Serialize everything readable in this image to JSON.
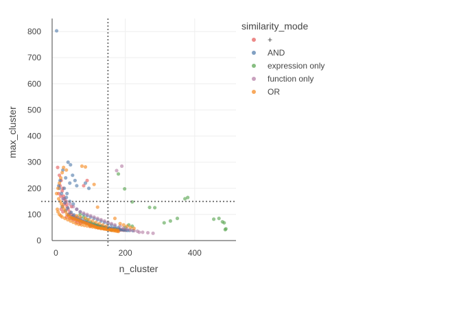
{
  "chart_data": {
    "type": "scatter",
    "xlabel": "n_cluster",
    "ylabel": "max_cluster",
    "xlim": [
      -5,
      525
    ],
    "ylim": [
      0,
      850
    ],
    "x_ticks": [
      0,
      200,
      400
    ],
    "y_ticks": [
      0,
      100,
      200,
      300,
      400,
      500,
      600,
      700,
      800
    ],
    "reference_lines": {
      "x": 150,
      "y": 150,
      "style": "dotted"
    },
    "grid": true,
    "legend": {
      "title": "similarity_mode",
      "placement": "right"
    },
    "series": [
      {
        "name": "+",
        "color": "#e45756",
        "points": [
          [
            5,
            280
          ],
          [
            10,
            250
          ],
          [
            12,
            210
          ],
          [
            15,
            230
          ],
          [
            18,
            190
          ],
          [
            20,
            200
          ],
          [
            22,
            170
          ],
          [
            25,
            160
          ],
          [
            28,
            150
          ],
          [
            30,
            140
          ],
          [
            32,
            130
          ],
          [
            35,
            120
          ],
          [
            40,
            110
          ],
          [
            45,
            100
          ],
          [
            50,
            95
          ],
          [
            55,
            90
          ],
          [
            60,
            85
          ],
          [
            65,
            80
          ],
          [
            70,
            78
          ],
          [
            75,
            75
          ],
          [
            80,
            72
          ],
          [
            85,
            70
          ],
          [
            90,
            68
          ],
          [
            95,
            65
          ],
          [
            100,
            62
          ],
          [
            105,
            60
          ],
          [
            110,
            58
          ],
          [
            115,
            56
          ],
          [
            120,
            55
          ],
          [
            125,
            53
          ],
          [
            130,
            52
          ],
          [
            135,
            50
          ],
          [
            140,
            50
          ],
          [
            145,
            48
          ],
          [
            150,
            47
          ],
          [
            155,
            46
          ],
          [
            160,
            45
          ],
          [
            165,
            44
          ],
          [
            170,
            43
          ],
          [
            175,
            42
          ],
          [
            180,
            42
          ],
          [
            185,
            41
          ],
          [
            190,
            41
          ],
          [
            195,
            40
          ],
          [
            200,
            40
          ],
          [
            8,
            180
          ],
          [
            14,
            170
          ],
          [
            24,
            140
          ],
          [
            38,
            100
          ],
          [
            48,
            85
          ],
          [
            58,
            78
          ],
          [
            68,
            73
          ],
          [
            78,
            70
          ],
          [
            88,
            66
          ],
          [
            98,
            60
          ],
          [
            108,
            57
          ],
          [
            118,
            54
          ],
          [
            128,
            51
          ],
          [
            138,
            49
          ],
          [
            90,
            230
          ],
          [
            80,
            210
          ],
          [
            45,
            130
          ],
          [
            15,
            120
          ],
          [
            20,
            110
          ],
          [
            30,
            90
          ],
          [
            40,
            85
          ],
          [
            50,
            80
          ],
          [
            60,
            70
          ],
          [
            70,
            65
          ],
          [
            100,
            55
          ],
          [
            120,
            50
          ],
          [
            140,
            45
          ],
          [
            160,
            40
          ],
          [
            180,
            38
          ]
        ]
      },
      {
        "name": "AND",
        "color": "#4c78a8",
        "points": [
          [
            2,
            803
          ],
          [
            35,
            300
          ],
          [
            42,
            290
          ],
          [
            48,
            250
          ],
          [
            55,
            230
          ],
          [
            85,
            220
          ],
          [
            10,
            200
          ],
          [
            16,
            180
          ],
          [
            22,
            160
          ],
          [
            26,
            145
          ],
          [
            34,
            125
          ],
          [
            44,
            108
          ],
          [
            52,
            98
          ],
          [
            62,
            90
          ],
          [
            72,
            85
          ],
          [
            82,
            78
          ],
          [
            92,
            72
          ],
          [
            102,
            66
          ],
          [
            112,
            62
          ],
          [
            122,
            58
          ],
          [
            132,
            55
          ],
          [
            142,
            52
          ],
          [
            152,
            50
          ],
          [
            162,
            48
          ],
          [
            172,
            46
          ],
          [
            182,
            44
          ],
          [
            192,
            42
          ],
          [
            202,
            40
          ],
          [
            212,
            39
          ],
          [
            222,
            38
          ],
          [
            18,
            130
          ],
          [
            28,
            115
          ],
          [
            36,
            100
          ],
          [
            46,
            92
          ],
          [
            56,
            86
          ],
          [
            66,
            80
          ],
          [
            76,
            74
          ],
          [
            86,
            70
          ],
          [
            96,
            64
          ],
          [
            106,
            60
          ],
          [
            116,
            57
          ],
          [
            126,
            54
          ],
          [
            136,
            52
          ],
          [
            146,
            49
          ],
          [
            156,
            47
          ],
          [
            166,
            45
          ],
          [
            176,
            43
          ],
          [
            186,
            41
          ],
          [
            196,
            40
          ],
          [
            206,
            39
          ],
          [
            20,
            270
          ],
          [
            28,
            240
          ],
          [
            40,
            220
          ],
          [
            60,
            210
          ],
          [
            95,
            200
          ],
          [
            12,
            230
          ],
          [
            8,
            210
          ],
          [
            24,
            200
          ],
          [
            32,
            180
          ],
          [
            30,
            165
          ],
          [
            40,
            150
          ],
          [
            50,
            140
          ],
          [
            60,
            120
          ],
          [
            70,
            110
          ],
          [
            80,
            100
          ],
          [
            90,
            95
          ],
          [
            100,
            90
          ],
          [
            110,
            85
          ],
          [
            120,
            80
          ],
          [
            130,
            75
          ],
          [
            140,
            70
          ],
          [
            150,
            65
          ],
          [
            160,
            60
          ],
          [
            170,
            55
          ],
          [
            180,
            50
          ]
        ]
      },
      {
        "name": "expression only",
        "color": "#54a24b",
        "points": [
          [
            180,
            255
          ],
          [
            198,
            198
          ],
          [
            220,
            148
          ],
          [
            270,
            127
          ],
          [
            285,
            126
          ],
          [
            312,
            68
          ],
          [
            330,
            75
          ],
          [
            350,
            85
          ],
          [
            372,
            160
          ],
          [
            380,
            165
          ],
          [
            455,
            82
          ],
          [
            470,
            85
          ],
          [
            480,
            72
          ],
          [
            485,
            68
          ],
          [
            490,
            45
          ],
          [
            488,
            42
          ],
          [
            210,
            60
          ],
          [
            220,
            55
          ],
          [
            200,
            50
          ],
          [
            170,
            42
          ],
          [
            160,
            40
          ],
          [
            150,
            45
          ],
          [
            140,
            50
          ],
          [
            130,
            55
          ],
          [
            120,
            60
          ],
          [
            110,
            65
          ],
          [
            100,
            70
          ],
          [
            90,
            80
          ],
          [
            80,
            90
          ],
          [
            70,
            100
          ]
        ]
      },
      {
        "name": "function only",
        "color": "#b279a2",
        "points": [
          [
            175,
            268
          ],
          [
            190,
            285
          ],
          [
            240,
            32
          ],
          [
            250,
            32
          ],
          [
            265,
            30
          ],
          [
            280,
            28
          ],
          [
            185,
            55
          ],
          [
            195,
            48
          ],
          [
            205,
            44
          ],
          [
            215,
            40
          ],
          [
            225,
            38
          ],
          [
            235,
            36
          ],
          [
            170,
            60
          ],
          [
            160,
            65
          ],
          [
            150,
            70
          ],
          [
            140,
            75
          ],
          [
            130,
            80
          ],
          [
            120,
            85
          ],
          [
            110,
            90
          ],
          [
            100,
            95
          ],
          [
            90,
            100
          ],
          [
            80,
            105
          ],
          [
            70,
            110
          ],
          [
            60,
            120
          ],
          [
            50,
            130
          ],
          [
            40,
            140
          ],
          [
            30,
            150
          ],
          [
            20,
            160
          ]
        ]
      },
      {
        "name": "OR",
        "color": "#f58518",
        "points": [
          [
            2,
            180
          ],
          [
            6,
            200
          ],
          [
            10,
            220
          ],
          [
            14,
            240
          ],
          [
            18,
            260
          ],
          [
            22,
            280
          ],
          [
            30,
            270
          ],
          [
            75,
            285
          ],
          [
            85,
            282
          ],
          [
            110,
            215
          ],
          [
            120,
            128
          ],
          [
            8,
            160
          ],
          [
            12,
            150
          ],
          [
            16,
            140
          ],
          [
            20,
            130
          ],
          [
            24,
            120
          ],
          [
            28,
            110
          ],
          [
            32,
            100
          ],
          [
            36,
            95
          ],
          [
            40,
            90
          ],
          [
            44,
            88
          ],
          [
            48,
            86
          ],
          [
            52,
            84
          ],
          [
            56,
            82
          ],
          [
            60,
            80
          ],
          [
            64,
            78
          ],
          [
            68,
            76
          ],
          [
            72,
            74
          ],
          [
            76,
            72
          ],
          [
            80,
            70
          ],
          [
            84,
            68
          ],
          [
            88,
            66
          ],
          [
            92,
            64
          ],
          [
            96,
            62
          ],
          [
            100,
            60
          ],
          [
            104,
            58
          ],
          [
            108,
            56
          ],
          [
            112,
            54
          ],
          [
            116,
            52
          ],
          [
            120,
            50
          ],
          [
            124,
            49
          ],
          [
            128,
            48
          ],
          [
            132,
            47
          ],
          [
            136,
            46
          ],
          [
            140,
            45
          ],
          [
            144,
            44
          ],
          [
            148,
            43
          ],
          [
            152,
            42
          ],
          [
            156,
            41
          ],
          [
            160,
            40
          ],
          [
            164,
            39
          ],
          [
            168,
            38
          ],
          [
            172,
            37
          ],
          [
            176,
            36
          ],
          [
            180,
            35
          ],
          [
            185,
            65
          ],
          [
            195,
            60
          ],
          [
            205,
            55
          ],
          [
            215,
            50
          ],
          [
            225,
            47
          ],
          [
            4,
            120
          ],
          [
            6,
            110
          ],
          [
            10,
            100
          ],
          [
            14,
            95
          ],
          [
            18,
            90
          ],
          [
            26,
            85
          ],
          [
            34,
            80
          ],
          [
            42,
            75
          ],
          [
            50,
            70
          ],
          [
            58,
            65
          ],
          [
            66,
            62
          ],
          [
            74,
            60
          ],
          [
            82,
            58
          ],
          [
            90,
            56
          ],
          [
            98,
            54
          ],
          [
            106,
            52
          ],
          [
            114,
            50
          ],
          [
            122,
            48
          ],
          [
            130,
            46
          ],
          [
            138,
            45
          ],
          [
            146,
            44
          ],
          [
            154,
            43
          ],
          [
            162,
            42
          ],
          [
            170,
            41
          ],
          [
            178,
            40
          ],
          [
            60,
            95
          ],
          [
            70,
            90
          ],
          [
            85,
            85
          ],
          [
            95,
            80
          ],
          [
            105,
            75
          ],
          [
            115,
            70
          ],
          [
            125,
            65
          ],
          [
            135,
            60
          ],
          [
            145,
            55
          ],
          [
            170,
            85
          ]
        ]
      }
    ]
  }
}
